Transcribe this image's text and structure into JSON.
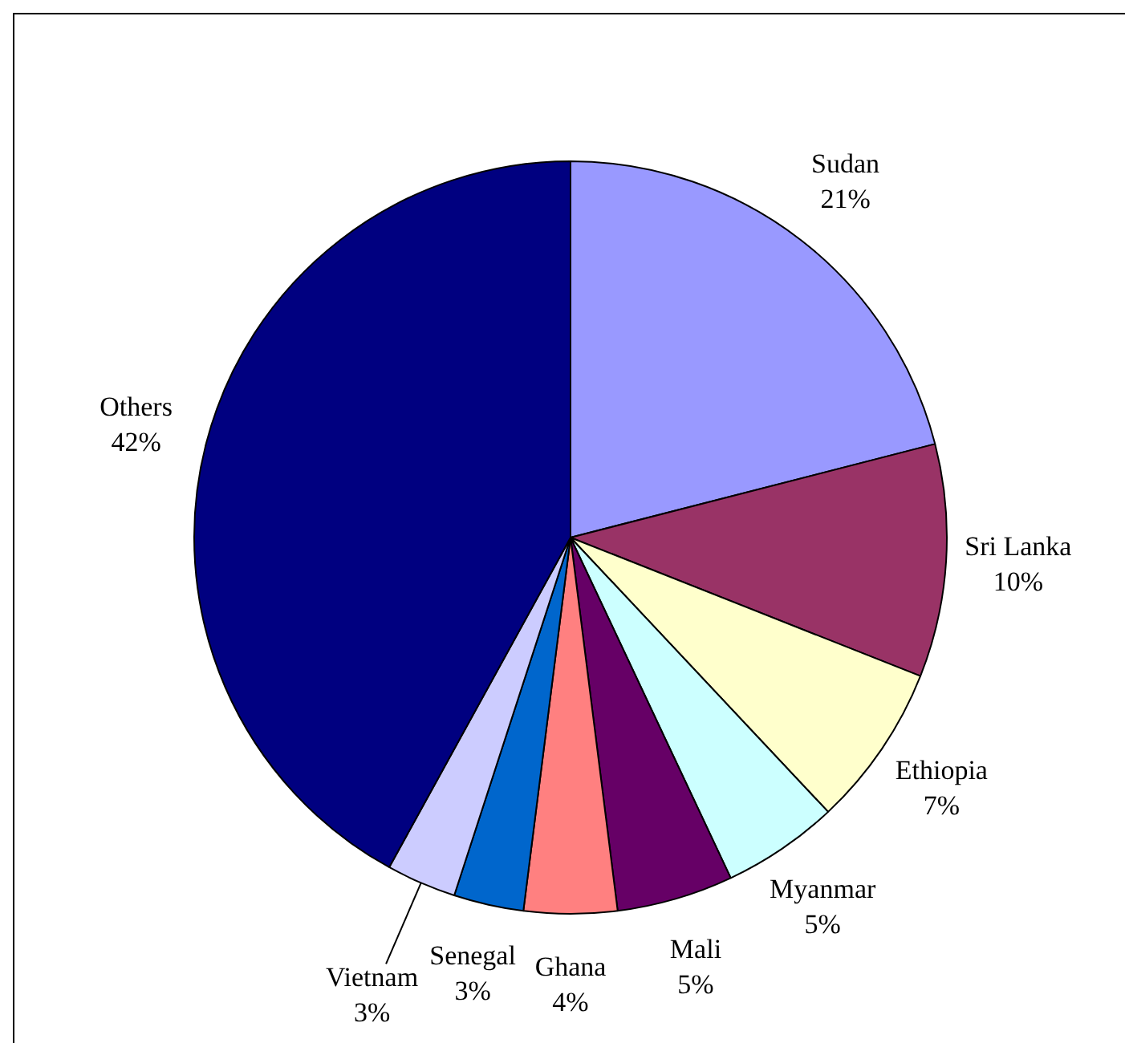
{
  "chart_data": {
    "type": "pie",
    "categories": [
      "Sudan",
      "Sri Lanka",
      "Ethiopia",
      "Myanmar",
      "Mali",
      "Ghana",
      "Senegal",
      "Vietnam",
      "Others"
    ],
    "values": [
      21,
      10,
      7,
      5,
      5,
      4,
      3,
      3,
      42
    ],
    "value_labels": [
      "21%",
      "10%",
      "7%",
      "5%",
      "5%",
      "4%",
      "3%",
      "3%",
      "42%"
    ],
    "colors": [
      "#9999ff",
      "#993366",
      "#ffffcc",
      "#ccffff",
      "#660066",
      "#ff8080",
      "#0066cc",
      "#ccccff",
      "#000080"
    ],
    "legend": false
  }
}
